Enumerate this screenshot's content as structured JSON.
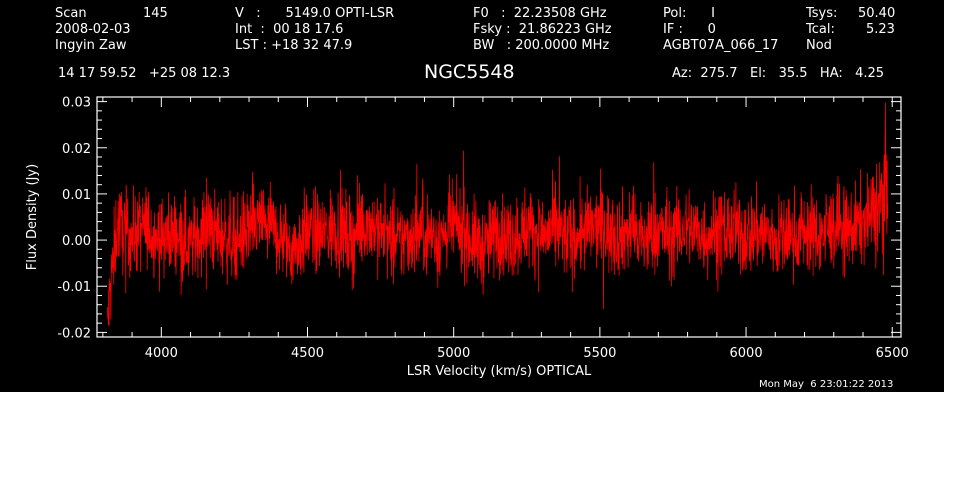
{
  "header": {
    "scan_label": "Scan",
    "scan_value": "145",
    "date": "2008-02-03",
    "observer": "Ingyin Zaw",
    "velocity": "V   :      5149.0 OPTI-LSR",
    "integration": "Int  :  00 18 17.6",
    "lst": "LST : +18 32 47.9",
    "f0": "F0   :  22.23508 GHz",
    "fsky": "Fsky :  21.86223 GHz",
    "bw": "BW   : 200.0000 MHz",
    "pol": "Pol:      I",
    "if": "IF :      0",
    "project": "AGBT07A_066_17",
    "tsys_label": "Tsys:",
    "tsys_value": "50.40",
    "tcal_label": "Tcal:",
    "tcal_value": "5.23",
    "mode": "Nod",
    "coords": "14 17 59.52   +25 08 12.3",
    "source": "NGC5548",
    "azelha": "Az:  275.7   El:   35.5   HA:   4.25",
    "timestamp": "Mon May  6 23:01:22 2013"
  },
  "colors": {
    "background": "#000000",
    "axes": "#ffffff",
    "series": "#ff0000"
  },
  "chart_data": {
    "type": "line",
    "title": "NGC5548",
    "xlabel": "LSR Velocity (km/s) OPTICAL",
    "ylabel": "Flux Density (Jy)",
    "xlim": [
      3780,
      6530
    ],
    "ylim": [
      -0.021,
      0.031
    ],
    "x_ticks": [
      4000,
      4500,
      5000,
      5500,
      6000,
      6500
    ],
    "x_tick_labels": [
      "4000",
      "4500",
      "5000",
      "5500",
      "6000",
      "6500"
    ],
    "y_ticks": [
      -0.02,
      -0.01,
      0.0,
      0.01,
      0.02,
      0.03
    ],
    "y_tick_labels": [
      "-0.02",
      "-0.01",
      "0.00",
      "0.01",
      "0.02",
      "0.03"
    ],
    "series": [
      {
        "x": [
          3815,
          3830,
          3850,
          3870,
          3900,
          3950,
          4000,
          4050,
          4100,
          4150,
          4200,
          4250,
          4300,
          4350,
          4400,
          4450,
          4500,
          4550,
          4600,
          4650,
          4700,
          4750,
          4800,
          4850,
          4900,
          4950,
          5000,
          5050,
          5100,
          5150,
          5200,
          5250,
          5300,
          5350,
          5400,
          5450,
          5500,
          5550,
          5600,
          5650,
          5700,
          5750,
          5800,
          5850,
          5900,
          5950,
          6000,
          6050,
          6100,
          6150,
          6200,
          6250,
          6300,
          6350,
          6400,
          6420,
          6440,
          6460,
          6475,
          6485
        ],
        "y": [
          -0.019,
          -0.008,
          0.004,
          0.002,
          0.001,
          0.003,
          0.0,
          0.002,
          -0.001,
          0.003,
          0.001,
          0.0,
          0.002,
          0.004,
          0.001,
          -0.002,
          0.002,
          0.001,
          0.003,
          0.0,
          0.004,
          0.002,
          -0.001,
          0.001,
          0.002,
          0.0,
          0.003,
          0.001,
          -0.002,
          0.002,
          0.0,
          0.003,
          0.001,
          0.002,
          0.0,
          0.002,
          0.003,
          0.001,
          0.002,
          0.0,
          0.002,
          0.001,
          0.003,
          0.001,
          0.002,
          0.002,
          0.001,
          0.002,
          0.0,
          0.001,
          0.002,
          0.001,
          0.003,
          0.002,
          0.004,
          0.005,
          0.006,
          0.008,
          0.011,
          0.013
        ]
      }
    ]
  }
}
